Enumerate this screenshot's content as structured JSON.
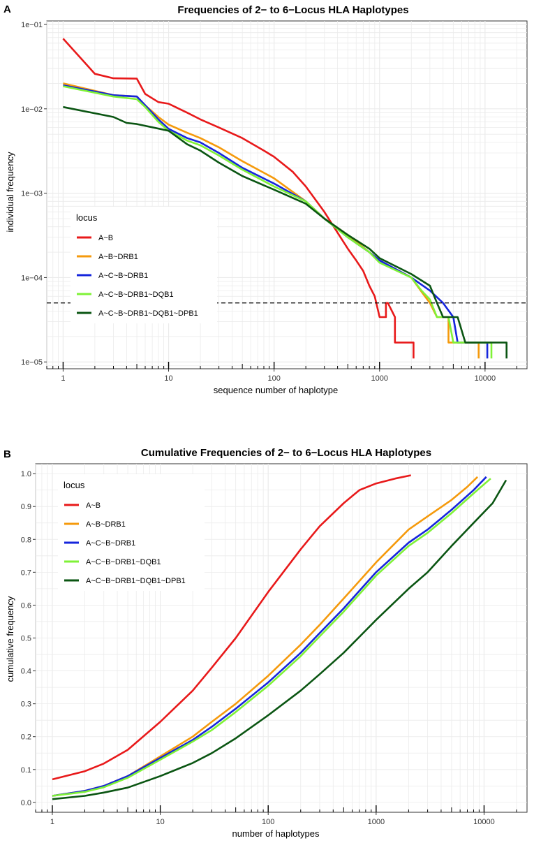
{
  "chart_data": [
    {
      "panel": "A",
      "type": "line",
      "title": "Frequencies of 2− to 6−Locus HLA Haplotypes",
      "xlabel": "sequence number of haplotype",
      "ylabel": "individual frequency",
      "xscale": "log10",
      "yscale": "log10",
      "xlim": [
        0.7,
        25000
      ],
      "ylim": [
        8.3e-06,
        0.11
      ],
      "xticks": [
        1,
        10,
        100,
        1000,
        10000
      ],
      "xtick_labels": [
        "1",
        "10",
        "100",
        "1000",
        "10000"
      ],
      "yticks": [
        1e-05,
        0.0001,
        0.001,
        0.01,
        0.1
      ],
      "ytick_labels": [
        "1e−05",
        "1e−04",
        "1e−03",
        "1e−02",
        "1e−01"
      ],
      "hline": 5e-05,
      "legend_title": "locus",
      "legend_position": "left",
      "series": [
        {
          "name": "A~B",
          "color": "#e8191a",
          "points": [
            [
              1,
              0.068
            ],
            [
              2,
              0.026
            ],
            [
              3,
              0.023
            ],
            [
              5,
              0.0228
            ],
            [
              6,
              0.015
            ],
            [
              8,
              0.012
            ],
            [
              10,
              0.0115
            ],
            [
              15,
              0.009
            ],
            [
              20,
              0.0075
            ],
            [
              30,
              0.006
            ],
            [
              50,
              0.0045
            ],
            [
              80,
              0.0032
            ],
            [
              100,
              0.0027
            ],
            [
              150,
              0.0018
            ],
            [
              200,
              0.0012
            ],
            [
              300,
              0.0006
            ],
            [
              400,
              0.00034
            ],
            [
              500,
              0.00022
            ],
            [
              600,
              0.00016
            ],
            [
              700,
              0.00012
            ],
            [
              800,
              8e-05
            ],
            [
              900,
              6e-05
            ],
            [
              1000,
              3.4e-05
            ],
            [
              1150,
              3.4e-05
            ],
            [
              1150,
              5e-05
            ],
            [
              1200,
              5e-05
            ],
            [
              1400,
              3.4e-05
            ],
            [
              1400,
              1.7e-05
            ],
            [
              2100,
              1.7e-05
            ],
            [
              2100,
              1.1e-05
            ]
          ]
        },
        {
          "name": "A~B~DRB1",
          "color": "#f59a0c",
          "points": [
            [
              1,
              0.02
            ],
            [
              3,
              0.0145
            ],
            [
              5,
              0.014
            ],
            [
              6,
              0.011
            ],
            [
              8,
              0.008
            ],
            [
              10,
              0.0065
            ],
            [
              15,
              0.0052
            ],
            [
              20,
              0.0045
            ],
            [
              30,
              0.0035
            ],
            [
              50,
              0.0024
            ],
            [
              100,
              0.0015
            ],
            [
              200,
              0.0008
            ],
            [
              300,
              0.0005
            ],
            [
              500,
              0.00032
            ],
            [
              800,
              0.0002
            ],
            [
              1000,
              0.00016
            ],
            [
              2000,
              0.0001
            ],
            [
              2500,
              6.8e-05
            ],
            [
              3000,
              5e-05
            ],
            [
              3500,
              3.4e-05
            ],
            [
              4500,
              3.4e-05
            ],
            [
              4500,
              1.7e-05
            ],
            [
              8700,
              1.7e-05
            ],
            [
              8700,
              1.1e-05
            ]
          ]
        },
        {
          "name": "A~C~B~DRB1",
          "color": "#1525dc",
          "points": [
            [
              1,
              0.019
            ],
            [
              3,
              0.0145
            ],
            [
              5,
              0.014
            ],
            [
              6,
              0.011
            ],
            [
              8,
              0.0075
            ],
            [
              10,
              0.0058
            ],
            [
              15,
              0.0045
            ],
            [
              20,
              0.004
            ],
            [
              30,
              0.003
            ],
            [
              50,
              0.002
            ],
            [
              100,
              0.0013
            ],
            [
              200,
              0.0008
            ],
            [
              300,
              0.0005
            ],
            [
              500,
              0.0003
            ],
            [
              800,
              0.0002
            ],
            [
              1000,
              0.00016
            ],
            [
              2000,
              0.0001
            ],
            [
              3000,
              7e-05
            ],
            [
              4000,
              5e-05
            ],
            [
              5000,
              3.4e-05
            ],
            [
              5500,
              1.7e-05
            ],
            [
              10500,
              1.7e-05
            ],
            [
              10500,
              1.1e-05
            ]
          ]
        },
        {
          "name": "A~C~B~DRB1~DQB1",
          "color": "#7ff237",
          "points": [
            [
              1,
              0.0185
            ],
            [
              3,
              0.014
            ],
            [
              5,
              0.013
            ],
            [
              6,
              0.0105
            ],
            [
              8,
              0.007
            ],
            [
              10,
              0.0055
            ],
            [
              15,
              0.0042
            ],
            [
              20,
              0.0037
            ],
            [
              30,
              0.0028
            ],
            [
              50,
              0.0019
            ],
            [
              100,
              0.0012
            ],
            [
              200,
              0.0008
            ],
            [
              300,
              0.0005
            ],
            [
              500,
              0.0003
            ],
            [
              800,
              0.0002
            ],
            [
              1000,
              0.00015
            ],
            [
              2000,
              0.0001
            ],
            [
              2500,
              7e-05
            ],
            [
              3000,
              5.5e-05
            ],
            [
              3500,
              3.4e-05
            ],
            [
              4500,
              3.4e-05
            ],
            [
              5000,
              1.7e-05
            ],
            [
              11500,
              1.7e-05
            ],
            [
              11500,
              1.1e-05
            ]
          ]
        },
        {
          "name": "A~C~B~DRB1~DQB1~DPB1",
          "color": "#0a5512",
          "points": [
            [
              1,
              0.0105
            ],
            [
              3,
              0.008
            ],
            [
              4,
              0.0068
            ],
            [
              5,
              0.0066
            ],
            [
              10,
              0.0055
            ],
            [
              15,
              0.0038
            ],
            [
              20,
              0.0032
            ],
            [
              30,
              0.0023
            ],
            [
              50,
              0.0016
            ],
            [
              100,
              0.0011
            ],
            [
              200,
              0.00075
            ],
            [
              300,
              0.0005
            ],
            [
              500,
              0.00032
            ],
            [
              800,
              0.00022
            ],
            [
              1000,
              0.00017
            ],
            [
              2000,
              0.00011
            ],
            [
              3000,
              8e-05
            ],
            [
              3500,
              5e-05
            ],
            [
              4000,
              3.4e-05
            ],
            [
              5500,
              3.4e-05
            ],
            [
              6500,
              1.7e-05
            ],
            [
              16000,
              1.7e-05
            ],
            [
              16000,
              1.1e-05
            ]
          ]
        }
      ]
    },
    {
      "panel": "B",
      "type": "line",
      "title": "Cumulative Frequencies of 2− to 6−Locus HLA Haplotypes",
      "xlabel": "number of haplotypes",
      "ylabel": "cumulative frequency",
      "xscale": "log10",
      "yscale": "linear",
      "xlim": [
        0.7,
        25000
      ],
      "ylim": [
        -0.03,
        1.03
      ],
      "xticks": [
        1,
        10,
        100,
        1000,
        10000
      ],
      "xtick_labels": [
        "1",
        "10",
        "100",
        "1000",
        "10000"
      ],
      "yticks": [
        0,
        0.1,
        0.2,
        0.3,
        0.4,
        0.5,
        0.6,
        0.7,
        0.8,
        0.9,
        1
      ],
      "ytick_labels": [
        "0.0",
        "0.1",
        "0.2",
        "0.3",
        "0.4",
        "0.5",
        "0.6",
        "0.7",
        "0.8",
        "0.9",
        "1.0"
      ],
      "legend_title": "locus",
      "legend_position": "top-left",
      "series": [
        {
          "name": "A~B",
          "color": "#e8191a",
          "points": [
            [
              1,
              0.07
            ],
            [
              2,
              0.095
            ],
            [
              3,
              0.118
            ],
            [
              5,
              0.16
            ],
            [
              10,
              0.245
            ],
            [
              20,
              0.34
            ],
            [
              30,
              0.41
            ],
            [
              50,
              0.5
            ],
            [
              100,
              0.64
            ],
            [
              200,
              0.77
            ],
            [
              300,
              0.84
            ],
            [
              500,
              0.91
            ],
            [
              700,
              0.95
            ],
            [
              1000,
              0.97
            ],
            [
              1500,
              0.985
            ],
            [
              2100,
              0.995
            ]
          ]
        },
        {
          "name": "A~B~DRB1",
          "color": "#f59a0c",
          "points": [
            [
              1,
              0.02
            ],
            [
              2,
              0.035
            ],
            [
              3,
              0.05
            ],
            [
              5,
              0.08
            ],
            [
              10,
              0.14
            ],
            [
              20,
              0.2
            ],
            [
              30,
              0.245
            ],
            [
              50,
              0.3
            ],
            [
              100,
              0.385
            ],
            [
              200,
              0.48
            ],
            [
              300,
              0.54
            ],
            [
              500,
              0.62
            ],
            [
              1000,
              0.73
            ],
            [
              2000,
              0.83
            ],
            [
              3000,
              0.87
            ],
            [
              5000,
              0.92
            ],
            [
              7000,
              0.96
            ],
            [
              8700,
              0.99
            ]
          ]
        },
        {
          "name": "A~C~B~DRB1",
          "color": "#1525dc",
          "points": [
            [
              1,
              0.02
            ],
            [
              2,
              0.035
            ],
            [
              3,
              0.05
            ],
            [
              5,
              0.08
            ],
            [
              10,
              0.135
            ],
            [
              20,
              0.19
            ],
            [
              30,
              0.23
            ],
            [
              50,
              0.285
            ],
            [
              100,
              0.365
            ],
            [
              200,
              0.455
            ],
            [
              300,
              0.515
            ],
            [
              500,
              0.59
            ],
            [
              1000,
              0.7
            ],
            [
              2000,
              0.79
            ],
            [
              3000,
              0.83
            ],
            [
              5000,
              0.89
            ],
            [
              8000,
              0.95
            ],
            [
              10500,
              0.99
            ]
          ]
        },
        {
          "name": "A~C~B~DRB1~DQB1",
          "color": "#7ff237",
          "points": [
            [
              1,
              0.02
            ],
            [
              2,
              0.032
            ],
            [
              3,
              0.046
            ],
            [
              5,
              0.075
            ],
            [
              10,
              0.13
            ],
            [
              20,
              0.185
            ],
            [
              30,
              0.22
            ],
            [
              50,
              0.275
            ],
            [
              100,
              0.355
            ],
            [
              200,
              0.445
            ],
            [
              300,
              0.505
            ],
            [
              500,
              0.58
            ],
            [
              1000,
              0.69
            ],
            [
              2000,
              0.78
            ],
            [
              3000,
              0.82
            ],
            [
              5000,
              0.88
            ],
            [
              8000,
              0.94
            ],
            [
              11500,
              0.985
            ]
          ]
        },
        {
          "name": "A~C~B~DRB1~DQB1~DPB1",
          "color": "#0a5512",
          "points": [
            [
              1,
              0.01
            ],
            [
              2,
              0.02
            ],
            [
              3,
              0.03
            ],
            [
              5,
              0.045
            ],
            [
              10,
              0.08
            ],
            [
              20,
              0.12
            ],
            [
              30,
              0.15
            ],
            [
              50,
              0.195
            ],
            [
              100,
              0.265
            ],
            [
              200,
              0.34
            ],
            [
              300,
              0.39
            ],
            [
              500,
              0.455
            ],
            [
              1000,
              0.555
            ],
            [
              2000,
              0.65
            ],
            [
              3000,
              0.7
            ],
            [
              5000,
              0.78
            ],
            [
              8000,
              0.85
            ],
            [
              12000,
              0.91
            ],
            [
              16000,
              0.98
            ]
          ]
        }
      ]
    }
  ]
}
